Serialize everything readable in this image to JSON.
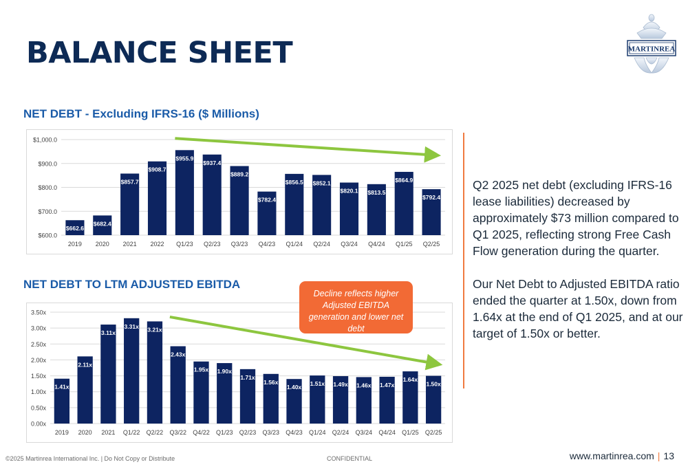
{
  "slide": {
    "title": "BALANCE SHEET",
    "logo_text": "MARTINREA",
    "callout_text": "Decline reflects higher Adjusted EBITDA generation and lower net debt",
    "commentary": [
      "Q2 2025 net debt (excluding IFRS-16 lease liabilities) decreased by approximately $73 million compared to Q1 2025, reflecting strong Free Cash Flow generation during the quarter.",
      "Our Net Debt to Adjusted EBITDA ratio ended the quarter at 1.50x, down from 1.64x at the end of Q1 2025, and at our target of 1.50x or better."
    ],
    "footer": {
      "copyright": "©2025 Martinrea International Inc. | Do Not Copy or Distribute",
      "confidential": "CONFIDENTIAL",
      "website": "www.martinrea.com",
      "separator": "|",
      "page_number": "13"
    }
  },
  "colors": {
    "bar": "#0d2461",
    "trend_arrow": "#8dc63f",
    "heading": "#1a5ba8",
    "title": "#0d2a55",
    "accent": "#f26a35"
  },
  "chart_data": [
    {
      "type": "bar",
      "title": "NET DEBT - Excluding IFRS-16 ($ Millions)",
      "categories": [
        "2019",
        "2020",
        "2021",
        "2022",
        "Q1/23",
        "Q2/23",
        "Q3/23",
        "Q4/23",
        "Q1/24",
        "Q2/24",
        "Q3/24",
        "Q4/24",
        "Q1/25",
        "Q2/25"
      ],
      "values": [
        662.6,
        682.4,
        857.7,
        908.7,
        955.9,
        937.4,
        889.2,
        782.4,
        856.5,
        852.1,
        820.1,
        813.5,
        864.9,
        792.4
      ],
      "data_labels": [
        "$662.6",
        "$682.4",
        "$857.7",
        "$908.7",
        "$955.9",
        "$937.4",
        "$889.2",
        "$782.4",
        "$856.5",
        "$852.1",
        "$820.1",
        "$813.5",
        "$864.9",
        "$792.4"
      ],
      "yticks": [
        600,
        700,
        800,
        900,
        1000
      ],
      "ytick_labels": [
        "$600.0",
        "$700.0",
        "$800.0",
        "$900.0",
        "$1,000.0"
      ],
      "ylim": [
        600,
        1000
      ],
      "trend_arrow": {
        "from_index": 4,
        "from_value": 1005,
        "to_index": 13,
        "to_value": 935
      },
      "grid": true,
      "legend": "none"
    },
    {
      "type": "bar",
      "title": "NET DEBT TO LTM ADJUSTED EBITDA",
      "categories": [
        "2019",
        "2020",
        "2021",
        "Q1/22",
        "Q2/22",
        "Q3/22",
        "Q4/22",
        "Q1/23",
        "Q2/23",
        "Q3/23",
        "Q4/23",
        "Q1/24",
        "Q2/24",
        "Q3/24",
        "Q4/24",
        "Q1/25",
        "Q2/25"
      ],
      "values": [
        1.41,
        2.11,
        3.11,
        3.31,
        3.21,
        2.43,
        1.95,
        1.9,
        1.71,
        1.56,
        1.4,
        1.51,
        1.49,
        1.46,
        1.47,
        1.64,
        1.5
      ],
      "data_labels": [
        "1.41x",
        "2.11x",
        "3.11x",
        "3.31x",
        "3.21x",
        "2.43x",
        "1.95x",
        "1.90x",
        "1.71x",
        "1.56x",
        "1.40x",
        "1.51x",
        "1.49x",
        "1.46x",
        "1.47x",
        "1.64x",
        "1.50x"
      ],
      "yticks": [
        0,
        0.5,
        1.0,
        1.5,
        2.0,
        2.5,
        3.0,
        3.5
      ],
      "ytick_labels": [
        "0.00x",
        "0.50x",
        "1.00x",
        "1.50x",
        "2.00x",
        "2.50x",
        "3.00x",
        "3.50x"
      ],
      "ylim": [
        0,
        3.5
      ],
      "trend_arrow": {
        "from_index": 5,
        "from_value": 3.35,
        "to_index": 16,
        "to_value": 1.88
      },
      "grid": true,
      "legend": "none"
    }
  ]
}
